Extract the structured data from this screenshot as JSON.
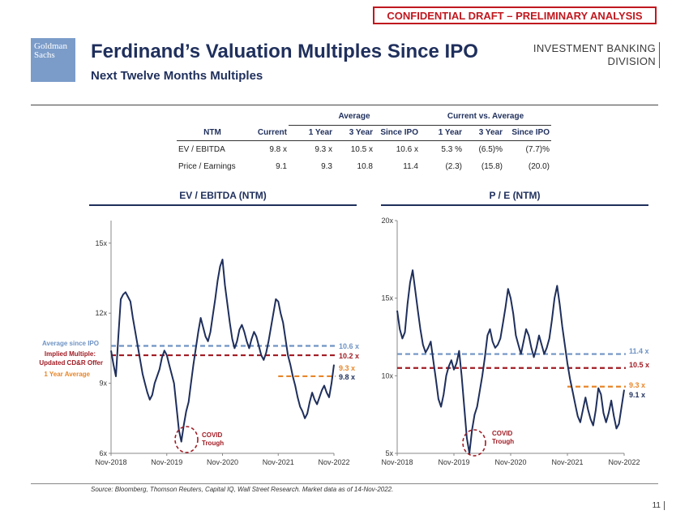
{
  "banner": "CONFIDENTIAL DRAFT – PRELIMINARY ANALYSIS",
  "logo": {
    "line1": "Goldman",
    "line2": "Sachs"
  },
  "title": "Ferdinand’s Valuation Multiples Since IPO",
  "subtitle": "Next Twelve Months Multiples",
  "division": {
    "line1": "INVESTMENT BANKING",
    "line2": "DIVISION"
  },
  "table": {
    "group_average": "Average",
    "group_vs": "Current vs. Average",
    "headers": [
      "NTM",
      "Current",
      "1 Year",
      "3 Year",
      "Since IPO",
      "1 Year",
      "3 Year",
      "Since IPO"
    ],
    "rows": [
      [
        "EV / EBITDA",
        "9.8 x",
        "9.3 x",
        "10.5 x",
        "10.6 x",
        "5.3 %",
        "(6.5)%",
        "(7.7)%"
      ],
      [
        "Price / Earnings",
        "9.1",
        "9.3",
        "10.8",
        "11.4",
        "(2.3)",
        "(15.8)",
        "(20.0)"
      ]
    ]
  },
  "colors": {
    "navy": "#1f2f5c",
    "blue_dash": "#6f93c4",
    "red_dash": "#a11c24",
    "orange_dash": "#e8862a"
  },
  "chart_data": [
    {
      "type": "line",
      "title": "EV / EBITDA (NTM)",
      "x_ticks": [
        "Nov-2018",
        "Nov-2019",
        "Nov-2020",
        "Nov-2021",
        "Nov-2022"
      ],
      "y_ticks": [
        "6x",
        "9x",
        "12x",
        "15x"
      ],
      "ylim": [
        6,
        16
      ],
      "series_name": "EV / EBITDA (NTM)",
      "values": [
        10.4,
        9.8,
        9.3,
        11.0,
        12.6,
        12.8,
        12.9,
        12.7,
        12.5,
        11.8,
        11.2,
        10.6,
        10.0,
        9.4,
        9.0,
        8.6,
        8.3,
        8.5,
        9.0,
        9.3,
        9.6,
        10.1,
        10.4,
        10.2,
        9.8,
        9.4,
        9.0,
        8.0,
        7.0,
        6.5,
        7.2,
        7.8,
        8.2,
        9.0,
        9.8,
        10.5,
        11.2,
        11.8,
        11.4,
        11.0,
        10.8,
        11.2,
        11.9,
        12.6,
        13.4,
        14.0,
        14.3,
        13.2,
        12.4,
        11.6,
        10.9,
        10.5,
        10.8,
        11.3,
        11.5,
        11.2,
        10.8,
        10.5,
        10.9,
        11.2,
        11.0,
        10.6,
        10.2,
        10.0,
        10.3,
        10.8,
        11.4,
        12.0,
        12.6,
        12.5,
        12.0,
        11.6,
        10.9,
        10.2,
        9.8,
        9.3,
        8.9,
        8.4,
        8.0,
        7.8,
        7.5,
        7.7,
        8.2,
        8.6,
        8.3,
        8.1,
        8.4,
        8.7,
        8.9,
        8.6,
        8.4,
        9.0,
        9.8
      ],
      "ref_lines": [
        {
          "name": "Average since IPO",
          "value": 10.6,
          "label": "10.6 x",
          "color": "#6f93c4"
        },
        {
          "name": "Implied Multiple: Updated CD&R Offer",
          "value": 10.2,
          "label": "10.2 x",
          "color": "#a11c24"
        },
        {
          "name": "1 Year Average",
          "value": 9.3,
          "label": "9.3 x",
          "color": "#e8862a"
        }
      ],
      "current_label": "9.8 x",
      "legend": {
        "avg_ipo": "Average since IPO",
        "implied_1": "Implied Multiple:",
        "implied_2": "Updated CD&R Offer",
        "one_year": "1 Year Average"
      },
      "annotation": {
        "line1": "COVID",
        "line2": "Trough"
      }
    },
    {
      "type": "line",
      "title": "P / E (NTM)",
      "x_ticks": [
        "Nov-2018",
        "Nov-2019",
        "Nov-2020",
        "Nov-2021",
        "Nov-2022"
      ],
      "y_ticks": [
        "5x",
        "10x",
        "15x",
        "20x"
      ],
      "ylim": [
        5,
        20
      ],
      "series_name": "P / E (NTM)",
      "values": [
        14.2,
        13.0,
        12.4,
        12.8,
        14.6,
        16.0,
        16.8,
        15.5,
        14.2,
        13.0,
        12.0,
        11.5,
        11.8,
        12.2,
        11.0,
        9.8,
        8.5,
        8.0,
        8.8,
        10.0,
        10.6,
        11.0,
        10.4,
        10.8,
        11.6,
        10.0,
        8.0,
        6.0,
        5.0,
        6.5,
        7.5,
        8.0,
        9.0,
        10.0,
        11.2,
        12.6,
        13.0,
        12.2,
        11.8,
        12.0,
        12.4,
        13.4,
        14.4,
        15.6,
        15.0,
        14.0,
        12.6,
        12.0,
        11.4,
        12.2,
        13.0,
        12.6,
        11.8,
        11.2,
        11.8,
        12.6,
        12.0,
        11.4,
        11.8,
        12.4,
        13.6,
        15.0,
        15.8,
        14.6,
        13.2,
        12.0,
        10.8,
        9.8,
        9.0,
        8.2,
        7.4,
        7.0,
        7.8,
        8.6,
        7.8,
        7.2,
        6.8,
        7.8,
        9.2,
        8.8,
        7.6,
        7.0,
        7.6,
        8.4,
        7.4,
        6.6,
        6.9,
        8.0,
        9.1
      ],
      "ref_lines": [
        {
          "name": "Average since IPO",
          "value": 11.4,
          "label": "11.4 x",
          "color": "#6f93c4"
        },
        {
          "name": "Implied Multiple: Updated CD&R Offer",
          "value": 10.5,
          "label": "10.5 x",
          "color": "#a11c24"
        },
        {
          "name": "1 Year Average",
          "value": 9.3,
          "label": "9.3 x",
          "color": "#e8862a"
        }
      ],
      "current_label": "9.1 x",
      "annotation": {
        "line1": "COVID",
        "line2": "Trough"
      }
    }
  ],
  "source": "Source: Bloomberg, Thomson Reuters, Capital IQ, Wall Street Research. Market data as of 14-Nov-2022.",
  "page_number": "11"
}
